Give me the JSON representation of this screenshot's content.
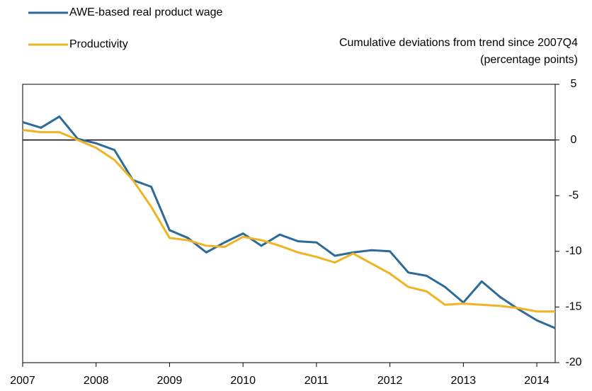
{
  "chart_data": {
    "type": "line",
    "annotations": [
      "Cumulative deviations from trend since 2007Q4",
      "(percentage points)"
    ],
    "x": [
      2007,
      2007.25,
      2007.5,
      2007.75,
      2008,
      2008.25,
      2008.5,
      2008.75,
      2009,
      2009.25,
      2009.5,
      2009.75,
      2010,
      2010.25,
      2010.5,
      2010.75,
      2011,
      2011.25,
      2011.5,
      2011.75,
      2012,
      2012.25,
      2012.5,
      2012.75,
      2013,
      2013.25,
      2013.5,
      2013.75,
      2014,
      2014.25
    ],
    "series": [
      {
        "name": "AWE-based real product wage",
        "color": "#2b6a99",
        "values": [
          1.6,
          1.1,
          2.1,
          0.1,
          -0.3,
          -0.9,
          -3.6,
          -4.2,
          -8.1,
          -8.8,
          -10.1,
          -9.2,
          -8.4,
          -9.5,
          -8.5,
          -9.1,
          -9.2,
          -10.4,
          -10.1,
          -9.9,
          -10.0,
          -11.9,
          -12.2,
          -13.2,
          -14.6,
          -12.7,
          -14.1,
          -15.2,
          -16.2,
          -16.9
        ]
      },
      {
        "name": "Productivity",
        "color": "#f0b323",
        "values": [
          0.9,
          0.7,
          0.7,
          0.0,
          -0.7,
          -1.8,
          -3.6,
          -6.0,
          -8.8,
          -9.0,
          -9.5,
          -9.6,
          -8.7,
          -9.0,
          -9.5,
          -10.1,
          -10.5,
          -11.0,
          -10.2,
          -11.1,
          -12.0,
          -13.2,
          -13.6,
          -14.8,
          -14.7,
          -14.8,
          -14.9,
          -15.1,
          -15.4,
          -15.4
        ]
      }
    ],
    "xlim": [
      2007,
      2014.25
    ],
    "xticks": [
      2007,
      2008,
      2009,
      2010,
      2011,
      2012,
      2013,
      2014
    ],
    "ylim": [
      -20,
      5
    ],
    "yticks": [
      5,
      0,
      -5,
      -10,
      -15,
      -20
    ],
    "legend": "top-left"
  }
}
